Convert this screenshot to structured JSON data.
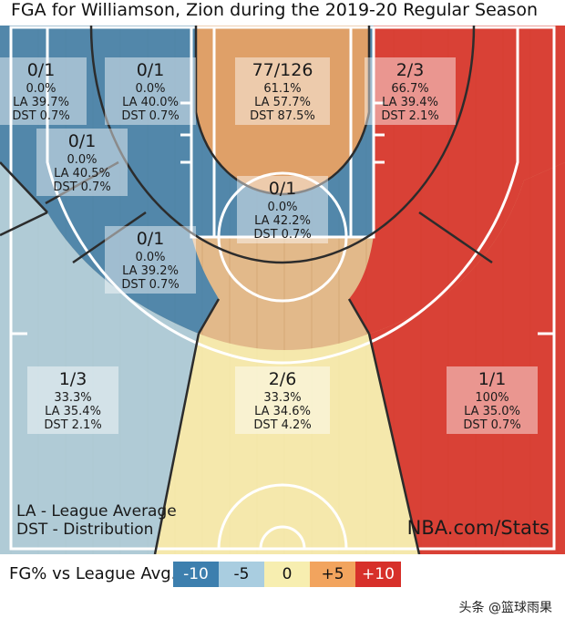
{
  "title": "FGA for Williamson, Zion during the 2019-20 Regular Season",
  "colors": {
    "minus10": "#3d7fae",
    "minus5": "#a9cde0",
    "zero": "#f7eeb0",
    "plus5": "#f2a45e",
    "plus10": "#d7302a",
    "wood": "#e2b98a",
    "lines": "#ffffff",
    "court_lines_dark": "#2c2c2c"
  },
  "chart_data": {
    "type": "heatmap",
    "title": "FGA for Williamson, Zion during the 2019-20 Regular Season",
    "zones": [
      {
        "id": "above-break-3-left-corner-side",
        "fg": "0/1",
        "pct": "0.0%",
        "la": "LA 39.7%",
        "dst": "DST 0.7%",
        "level": "minus10"
      },
      {
        "id": "above-break-3-left",
        "fg": "0/1",
        "pct": "0.0%",
        "la": "LA 40.0%",
        "dst": "DST 0.7%",
        "level": "minus10"
      },
      {
        "id": "restricted-area",
        "fg": "77/126",
        "pct": "61.1%",
        "la": "LA 57.7%",
        "dst": "DST 87.5%",
        "level": "plus5"
      },
      {
        "id": "mid-range-right-baseline",
        "fg": "2/3",
        "pct": "66.7%",
        "la": "LA 39.4%",
        "dst": "DST 2.1%",
        "level": "plus10"
      },
      {
        "id": "mid-range-left-baseline",
        "fg": "0/1",
        "pct": "0.0%",
        "la": "LA 40.5%",
        "dst": "DST 0.7%",
        "level": "minus10"
      },
      {
        "id": "paint-non-ra",
        "fg": "0/1",
        "pct": "0.0%",
        "la": "LA 42.2%",
        "dst": "DST 0.7%",
        "level": "minus10"
      },
      {
        "id": "mid-range-left-wing",
        "fg": "0/1",
        "pct": "0.0%",
        "la": "LA 39.2%",
        "dst": "DST 0.7%",
        "level": "minus10"
      },
      {
        "id": "three-left-wing",
        "fg": "1/3",
        "pct": "33.3%",
        "la": "LA 35.4%",
        "dst": "DST 2.1%",
        "level": "minus5"
      },
      {
        "id": "three-top-key",
        "fg": "2/6",
        "pct": "33.3%",
        "la": "LA 34.6%",
        "dst": "DST 4.2%",
        "level": "zero"
      },
      {
        "id": "three-right-wing",
        "fg": "1/1",
        "pct": "100%",
        "la": "LA 35.0%",
        "dst": "DST 0.7%",
        "level": "plus10"
      }
    ],
    "notes": [
      "LA - League Average",
      "DST - Distribution"
    ],
    "source": "NBA.com/Stats",
    "legend": {
      "title": "FG% vs League Avg.",
      "items": [
        {
          "label": "-10",
          "level": "minus10"
        },
        {
          "label": "-5",
          "level": "minus5"
        },
        {
          "label": "0",
          "level": "zero"
        },
        {
          "label": "+5",
          "level": "plus5"
        },
        {
          "label": "+10",
          "level": "plus10"
        }
      ]
    }
  },
  "watermark": "头条 @篮球雨果"
}
